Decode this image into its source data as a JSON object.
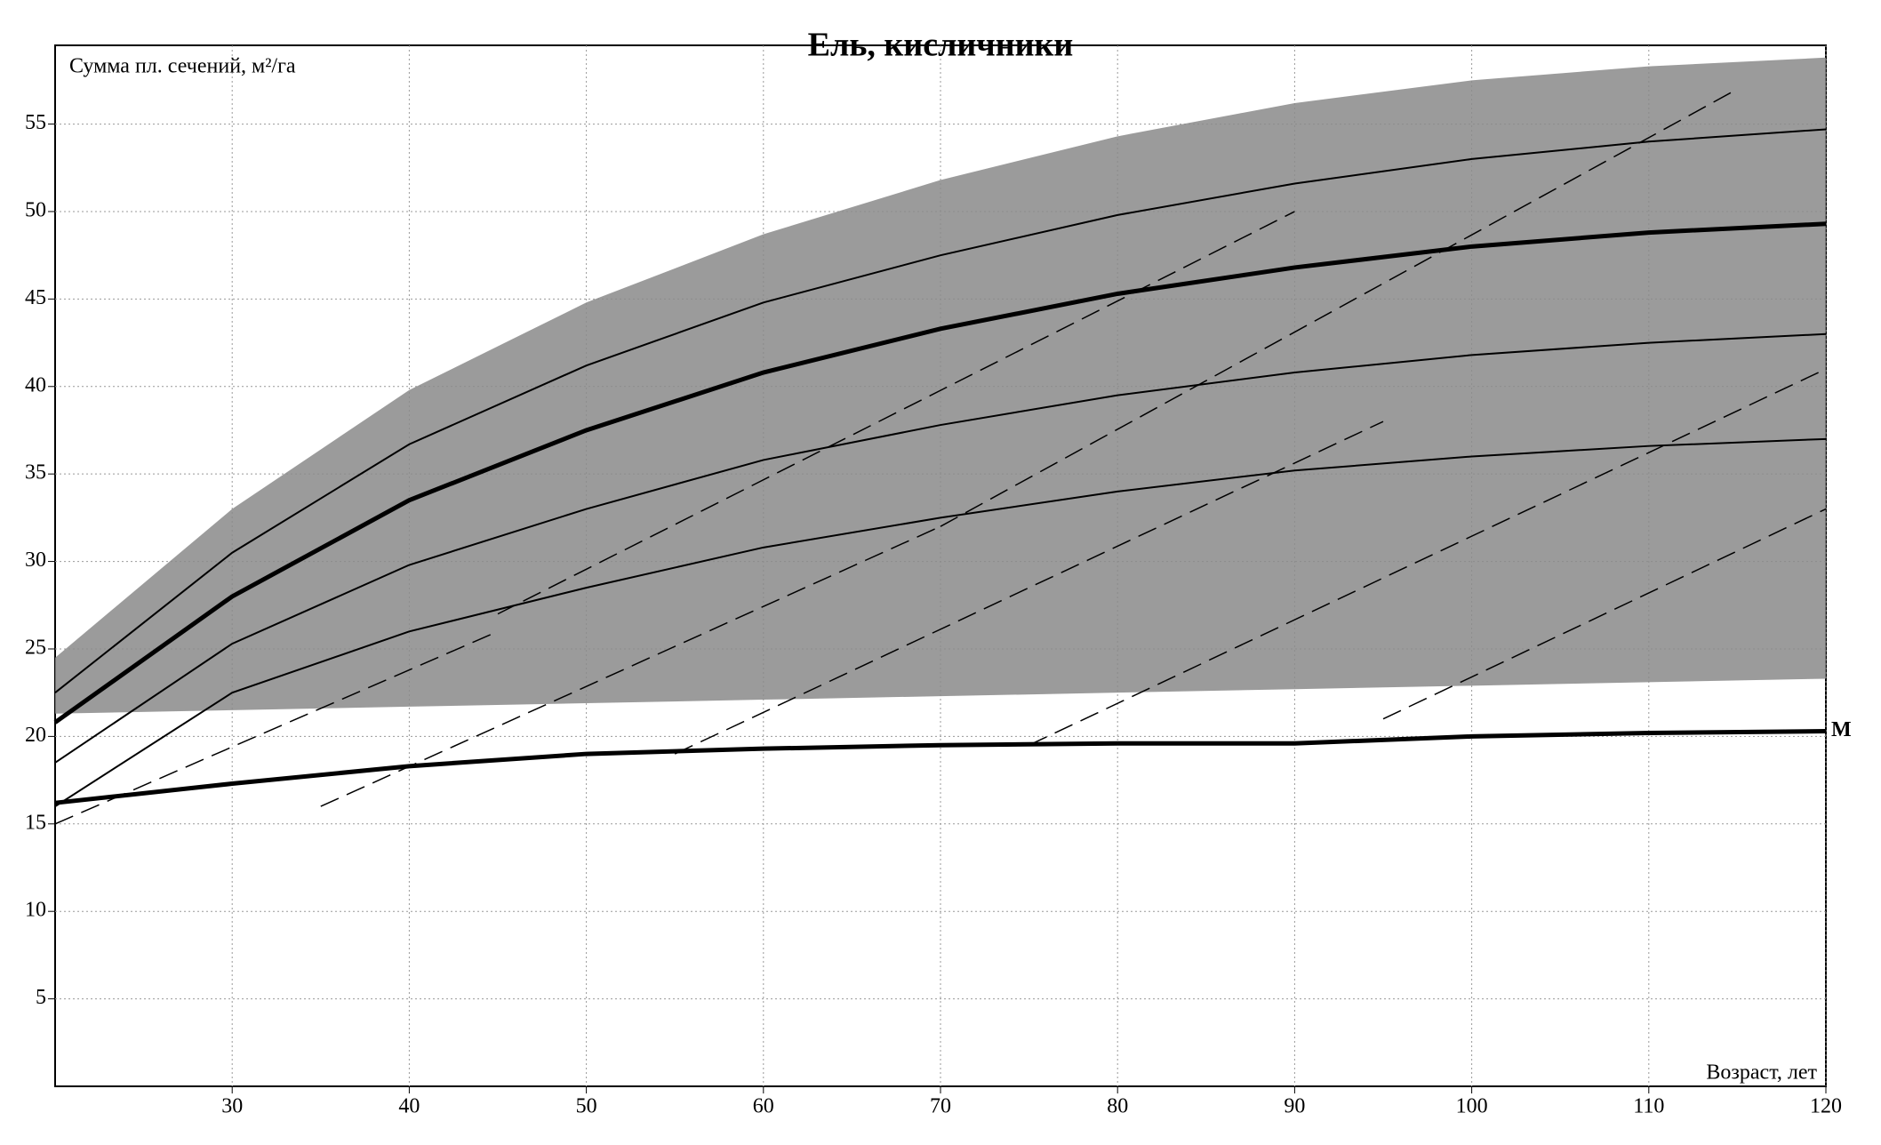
{
  "chart_data": {
    "type": "line",
    "title": "Ель, кисличники",
    "y_label": "Сумма пл. сечений, м²/га",
    "x_label": "Возраст, лет",
    "xlim": [
      20,
      120
    ],
    "ylim": [
      0,
      59.5
    ],
    "xticks": [
      30,
      40,
      50,
      60,
      70,
      80,
      90,
      100,
      110,
      120
    ],
    "yticks": [
      5,
      10,
      15,
      20,
      25,
      30,
      35,
      40,
      45,
      50,
      55
    ],
    "grid": true,
    "x": [
      20,
      30,
      40,
      50,
      60,
      70,
      80,
      90,
      100,
      110,
      120
    ],
    "series": [
      {
        "kind": "area",
        "color": "#8a8a8a",
        "values": [
          24.5,
          33,
          39.8,
          44.8,
          48.7,
          51.8,
          54.3,
          56.2,
          57.5,
          58.3,
          58.8
        ],
        "base": [
          21.3,
          21.5,
          21.7,
          21.9,
          22.1,
          22.3,
          22.5,
          22.7,
          22.9,
          23.1,
          23.3
        ]
      },
      {
        "color": "#000000",
        "width": 2,
        "values": [
          22.5,
          30.5,
          36.7,
          41.2,
          44.8,
          47.5,
          49.8,
          51.6,
          53,
          54,
          54.7
        ]
      },
      {
        "color": "#000000",
        "width": 5,
        "values": [
          20.8,
          28,
          33.5,
          37.5,
          40.8,
          43.3,
          45.3,
          46.8,
          48,
          48.8,
          49.3
        ]
      },
      {
        "color": "#000000",
        "width": 2,
        "values": [
          18.5,
          25.3,
          29.8,
          33,
          35.8,
          37.8,
          39.5,
          40.8,
          41.8,
          42.5,
          43
        ]
      },
      {
        "color": "#000000",
        "width": 2,
        "values": [
          16,
          22.5,
          26,
          28.5,
          30.8,
          32.5,
          34,
          35.2,
          36,
          36.6,
          37
        ]
      },
      {
        "color": "#000000",
        "width": 5,
        "label": "M",
        "values": [
          16.2,
          17.3,
          18.3,
          19,
          19.3,
          19.5,
          19.6,
          19.6,
          20,
          20.2,
          20.3
        ]
      },
      {
        "color": "#000000",
        "width": 1.5,
        "dash": true,
        "x": [
          20,
          45
        ],
        "values": [
          15,
          26
        ]
      },
      {
        "color": "#000000",
        "width": 1.5,
        "dash": true,
        "x": [
          35,
          70
        ],
        "values": [
          16,
          32
        ]
      },
      {
        "color": "#000000",
        "width": 1.5,
        "dash": true,
        "x": [
          55,
          95
        ],
        "values": [
          19,
          38
        ]
      },
      {
        "color": "#000000",
        "width": 1.5,
        "dash": true,
        "x": [
          75,
          120
        ],
        "values": [
          19.5,
          41
        ]
      },
      {
        "color": "#000000",
        "width": 1.5,
        "dash": true,
        "x": [
          45,
          90
        ],
        "values": [
          27,
          50
        ]
      },
      {
        "color": "#000000",
        "width": 1.5,
        "dash": true,
        "x": [
          70,
          115
        ],
        "values": [
          32,
          57
        ]
      },
      {
        "color": "#000000",
        "width": 1.5,
        "dash": true,
        "x": [
          95,
          120
        ],
        "values": [
          21,
          33
        ]
      }
    ]
  }
}
